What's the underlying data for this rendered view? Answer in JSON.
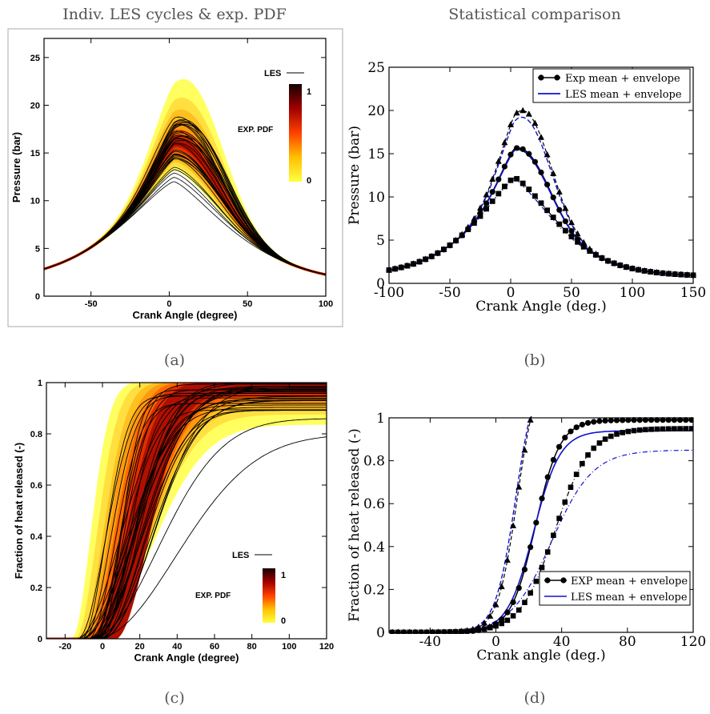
{
  "panels": [
    {
      "id": "a",
      "title": "Indiv. LES cycles & exp. PDF",
      "caption": "(a)",
      "chart_data": {
        "type": "line",
        "xlabel": "Crank Angle (degree)",
        "ylabel": "Pressure (bar)",
        "xlim": [
          -80,
          100
        ],
        "ylim": [
          0,
          27
        ],
        "xticks": [
          -50,
          0,
          50,
          100
        ],
        "yticks": [
          0,
          5,
          10,
          15,
          20,
          25
        ],
        "legend_line": "LES",
        "colorbar_label": "EXP. PDF",
        "colorbar_ticks": [
          "1",
          "0"
        ],
        "les_peak_range": [
          12.0,
          20.0
        ],
        "exp_peak_range": [
          13.5,
          23.5
        ],
        "peak_angle": 15
      }
    },
    {
      "id": "b",
      "title": "Statistical comparison",
      "caption": "(b)",
      "chart_data": {
        "type": "line",
        "xlabel": "Crank Angle (deg.)",
        "ylabel": "Pressure (bar)",
        "xlim": [
          -100,
          150
        ],
        "ylim": [
          0,
          25
        ],
        "xticks": [
          -100,
          -50,
          0,
          50,
          100,
          150
        ],
        "yticks": [
          0,
          5,
          10,
          15,
          20,
          25
        ],
        "legend": [
          "Exp mean + envelope",
          "LES mean + envelope"
        ],
        "series": [
          {
            "role": "exp-mean",
            "peak": 16.4,
            "peak_angle": 15
          },
          {
            "role": "exp-max",
            "peak": 21.0,
            "peak_angle": 15
          },
          {
            "role": "exp-min",
            "peak": 12.3,
            "peak_angle": 15
          },
          {
            "role": "les-mean",
            "peak": 16.2,
            "peak_angle": 15
          },
          {
            "role": "les-max",
            "peak": 20.2,
            "peak_angle": 15
          },
          {
            "role": "les-min",
            "peak": 12.0,
            "peak_angle": 10
          }
        ]
      }
    },
    {
      "id": "c",
      "title": "",
      "caption": "(c)",
      "chart_data": {
        "type": "line",
        "xlabel": "Crank Angle (degree)",
        "ylabel": "Fraction of heat released (-)",
        "xlim": [
          -30,
          120
        ],
        "ylim": [
          0,
          1
        ],
        "xticks": [
          -20,
          0,
          20,
          40,
          60,
          80,
          100,
          120
        ],
        "yticks": [
          0,
          0.2,
          0.4,
          0.6,
          0.8,
          1
        ],
        "legend_line": "LES",
        "colorbar_label": "EXP. PDF",
        "colorbar_ticks": [
          "1",
          "0"
        ]
      }
    },
    {
      "id": "d",
      "title": "",
      "caption": "(d)",
      "chart_data": {
        "type": "line",
        "xlabel": "Crank angle (deg.)",
        "ylabel": "Fraction of heat released (-)",
        "xlim": [
          -65,
          120
        ],
        "ylim": [
          0,
          1
        ],
        "xticks": [
          -40,
          0,
          40,
          80,
          120
        ],
        "yticks": [
          0,
          0.2,
          0.4,
          0.6,
          0.8,
          1
        ],
        "legend": [
          "EXP mean + envelope",
          "LES mean + envelope"
        ],
        "series": [
          {
            "role": "exp-fast",
            "x50": 13,
            "final": 1.0
          },
          {
            "role": "exp-mean",
            "x50": 24,
            "final": 0.99
          },
          {
            "role": "exp-slow",
            "x50": 36,
            "final": 0.95
          },
          {
            "role": "les-fast",
            "x50": 12,
            "final": 1.0
          },
          {
            "role": "les-mean",
            "x50": 23,
            "final": 0.94
          },
          {
            "role": "les-slow",
            "x50": 34,
            "final": 0.85
          }
        ]
      }
    }
  ]
}
